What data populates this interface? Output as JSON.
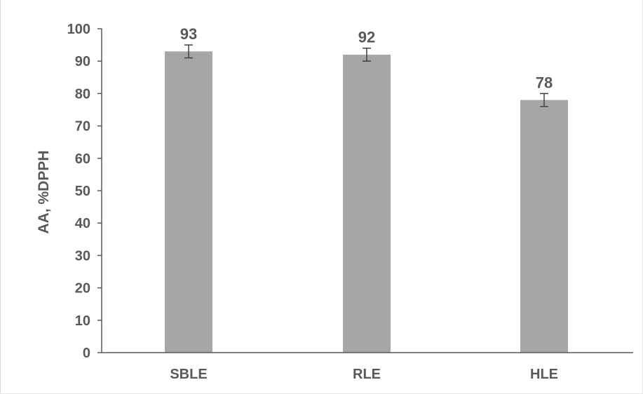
{
  "chart_data": {
    "type": "bar",
    "title": "",
    "xlabel": "",
    "ylabel": "AA, %DPPH",
    "categories": [
      "SBLE",
      "RLE",
      "HLE"
    ],
    "values": [
      93,
      92,
      78
    ],
    "error_bars": [
      2,
      2,
      2
    ],
    "data_labels": [
      "93",
      "92",
      "78"
    ],
    "ylim": [
      0,
      100
    ],
    "yticks": [
      0,
      10,
      20,
      30,
      40,
      50,
      60,
      70,
      80,
      90,
      100
    ],
    "ytick_labels": [
      "0",
      "10",
      "20",
      "30",
      "40",
      "50",
      "60",
      "70",
      "80",
      "90",
      "100"
    ],
    "grid": false,
    "legend": "none",
    "colors": {
      "bar": "#a6a6a6",
      "axis": "#595959",
      "text": "#595959",
      "error_bar": "#404040"
    }
  }
}
